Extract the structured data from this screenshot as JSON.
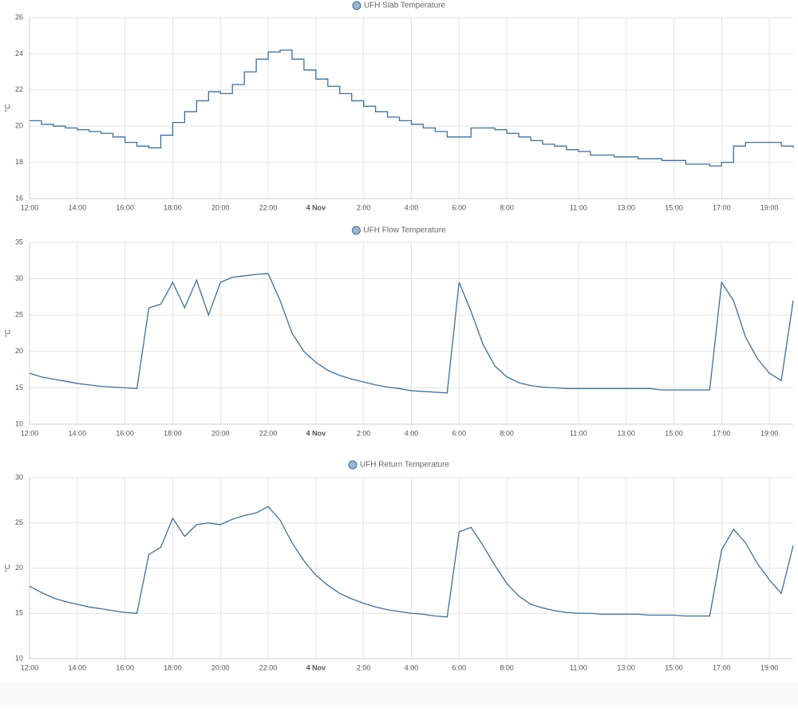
{
  "chart_data": [
    {
      "type": "line",
      "step": true,
      "ylabel": "°C",
      "x": [
        0,
        0.5,
        1,
        1.5,
        2,
        2.5,
        3,
        3.5,
        4,
        4.5,
        5,
        5.5,
        6,
        6.5,
        7,
        7.5,
        8,
        8.5,
        9,
        9.5,
        10,
        10.5,
        11,
        11.5,
        12,
        12.5,
        13,
        13.5,
        14,
        14.5,
        15,
        15.5,
        16,
        16.5,
        17,
        17.5,
        18,
        18.5,
        19,
        19.5,
        20,
        20.5,
        21,
        21.5,
        22,
        22.5,
        23,
        23.5,
        24,
        24.5,
        25,
        25.5,
        26,
        26.5,
        27,
        27.5,
        28,
        28.5,
        29,
        29.5,
        30,
        30.5,
        31,
        31.5,
        32
      ],
      "series": [
        {
          "name": "UFH Slab Temperature",
          "color": "#3f6f96",
          "values": [
            20.3,
            20.1,
            20.0,
            19.9,
            19.8,
            19.7,
            19.6,
            19.4,
            19.1,
            18.9,
            18.8,
            19.5,
            20.2,
            20.8,
            21.4,
            21.9,
            21.8,
            22.3,
            23.0,
            23.7,
            24.1,
            24.2,
            23.7,
            23.1,
            22.6,
            22.2,
            21.8,
            21.4,
            21.1,
            20.8,
            20.5,
            20.3,
            20.1,
            19.9,
            19.7,
            19.4,
            19.4,
            19.9,
            19.9,
            19.8,
            19.6,
            19.4,
            19.2,
            19.0,
            18.9,
            18.7,
            18.6,
            18.4,
            18.4,
            18.3,
            18.3,
            18.2,
            18.2,
            18.1,
            18.1,
            17.9,
            17.9,
            17.8,
            18.0,
            18.9,
            19.1,
            19.1,
            19.1,
            18.9,
            18.8
          ]
        }
      ],
      "xlim": [
        0,
        32
      ],
      "xticks": [
        {
          "value": 0,
          "label": "12:00"
        },
        {
          "value": 2,
          "label": "14:00"
        },
        {
          "value": 4,
          "label": "16:00"
        },
        {
          "value": 6,
          "label": "18:00"
        },
        {
          "value": 8,
          "label": "20:00"
        },
        {
          "value": 10,
          "label": "22:00"
        },
        {
          "value": 12,
          "label": "4 Nov"
        },
        {
          "value": 14,
          "label": "2:00"
        },
        {
          "value": 16,
          "label": "4:00"
        },
        {
          "value": 18,
          "label": "6:00"
        },
        {
          "value": 20,
          "label": "8:00"
        },
        {
          "value": 23,
          "label": "11:00"
        },
        {
          "value": 25,
          "label": "13:00"
        },
        {
          "value": 27,
          "label": "15:00"
        },
        {
          "value": 29,
          "label": "17:00"
        },
        {
          "value": 31,
          "label": "19:00"
        }
      ],
      "ylim": [
        16,
        26
      ],
      "yticks": [
        16,
        18,
        20,
        22,
        24,
        26
      ],
      "grid": true
    },
    {
      "type": "line",
      "step": false,
      "ylabel": "°C",
      "x": [
        0,
        0.5,
        1,
        1.5,
        2,
        2.5,
        3,
        3.5,
        4,
        4.5,
        5,
        5.5,
        6,
        6.5,
        7,
        7.5,
        8,
        8.5,
        9,
        9.5,
        10,
        10.5,
        11,
        11.5,
        12,
        12.5,
        13,
        13.5,
        14,
        14.5,
        15,
        15.5,
        16,
        16.5,
        17,
        17.5,
        18,
        18.5,
        19,
        19.5,
        20,
        20.5,
        21,
        21.5,
        22,
        22.5,
        23,
        23.5,
        24,
        24.5,
        25,
        25.5,
        26,
        26.5,
        27,
        27.5,
        28,
        28.5,
        29,
        29.5,
        30,
        30.5,
        31,
        31.5,
        32
      ],
      "series": [
        {
          "name": "UFH Flow Temperature",
          "color": "#3f6f96",
          "values": [
            17.0,
            16.5,
            16.2,
            15.9,
            15.6,
            15.4,
            15.2,
            15.1,
            15.0,
            14.9,
            26.0,
            26.5,
            29.5,
            26.0,
            29.8,
            25.0,
            29.5,
            30.2,
            30.4,
            30.6,
            30.7,
            27.0,
            22.5,
            20.0,
            18.5,
            17.4,
            16.7,
            16.2,
            15.8,
            15.4,
            15.1,
            14.9,
            14.6,
            14.5,
            14.4,
            14.3,
            29.5,
            25.5,
            21.0,
            18.0,
            16.5,
            15.7,
            15.3,
            15.1,
            15.0,
            14.9,
            14.9,
            14.9,
            14.9,
            14.9,
            14.9,
            14.9,
            14.9,
            14.7,
            14.7,
            14.7,
            14.7,
            14.7,
            29.5,
            27.0,
            22.0,
            19.0,
            17.0,
            16.0,
            27.0
          ]
        }
      ],
      "xlim": [
        0,
        32
      ],
      "xticks": [
        {
          "value": 0,
          "label": "12:00"
        },
        {
          "value": 2,
          "label": "14:00"
        },
        {
          "value": 4,
          "label": "16:00"
        },
        {
          "value": 6,
          "label": "18:00"
        },
        {
          "value": 8,
          "label": "20:00"
        },
        {
          "value": 10,
          "label": "22:00"
        },
        {
          "value": 12,
          "label": "4 Nov"
        },
        {
          "value": 14,
          "label": "2:00"
        },
        {
          "value": 16,
          "label": "4:00"
        },
        {
          "value": 18,
          "label": "6:00"
        },
        {
          "value": 20,
          "label": "8:00"
        },
        {
          "value": 23,
          "label": "11:00"
        },
        {
          "value": 25,
          "label": "13:00"
        },
        {
          "value": 27,
          "label": "15:00"
        },
        {
          "value": 29,
          "label": "17:00"
        },
        {
          "value": 31,
          "label": "19:00"
        }
      ],
      "ylim": [
        10,
        35
      ],
      "yticks": [
        10,
        15,
        20,
        25,
        30,
        35
      ],
      "grid": true
    },
    {
      "type": "line",
      "step": false,
      "ylabel": "°C",
      "x": [
        0,
        0.5,
        1,
        1.5,
        2,
        2.5,
        3,
        3.5,
        4,
        4.5,
        5,
        5.5,
        6,
        6.5,
        7,
        7.5,
        8,
        8.5,
        9,
        9.5,
        10,
        10.5,
        11,
        11.5,
        12,
        12.5,
        13,
        13.5,
        14,
        14.5,
        15,
        15.5,
        16,
        16.5,
        17,
        17.5,
        18,
        18.5,
        19,
        19.5,
        20,
        20.5,
        21,
        21.5,
        22,
        22.5,
        23,
        23.5,
        24,
        24.5,
        25,
        25.5,
        26,
        26.5,
        27,
        27.5,
        28,
        28.5,
        29,
        29.5,
        30,
        30.5,
        31,
        31.5,
        32
      ],
      "series": [
        {
          "name": "UFH Return Temperature",
          "color": "#3f6f96",
          "values": [
            18.0,
            17.3,
            16.7,
            16.3,
            16.0,
            15.7,
            15.5,
            15.3,
            15.1,
            15.0,
            21.5,
            22.3,
            25.5,
            23.5,
            24.8,
            25.0,
            24.8,
            25.4,
            25.8,
            26.1,
            26.8,
            25.3,
            22.8,
            20.8,
            19.2,
            18.1,
            17.2,
            16.6,
            16.1,
            15.7,
            15.4,
            15.2,
            15.0,
            14.9,
            14.7,
            14.6,
            24.0,
            24.5,
            22.5,
            20.3,
            18.3,
            16.9,
            16.0,
            15.6,
            15.3,
            15.1,
            15.0,
            15.0,
            14.9,
            14.9,
            14.9,
            14.9,
            14.8,
            14.8,
            14.8,
            14.7,
            14.7,
            14.7,
            22.0,
            24.3,
            22.8,
            20.5,
            18.7,
            17.2,
            22.5
          ]
        }
      ],
      "xlim": [
        0,
        32
      ],
      "xticks": [
        {
          "value": 0,
          "label": "12:00"
        },
        {
          "value": 2,
          "label": "14:00"
        },
        {
          "value": 4,
          "label": "16:00"
        },
        {
          "value": 6,
          "label": "18:00"
        },
        {
          "value": 8,
          "label": "20:00"
        },
        {
          "value": 10,
          "label": "22:00"
        },
        {
          "value": 12,
          "label": "4 Nov"
        },
        {
          "value": 14,
          "label": "2:00"
        },
        {
          "value": 16,
          "label": "4:00"
        },
        {
          "value": 18,
          "label": "6:00"
        },
        {
          "value": 20,
          "label": "8:00"
        },
        {
          "value": 23,
          "label": "11:00"
        },
        {
          "value": 25,
          "label": "13:00"
        },
        {
          "value": 27,
          "label": "15:00"
        },
        {
          "value": 29,
          "label": "17:00"
        },
        {
          "value": 31,
          "label": "19:00"
        }
      ],
      "ylim": [
        10,
        30
      ],
      "yticks": [
        10,
        15,
        20,
        25,
        30
      ],
      "grid": true
    }
  ]
}
